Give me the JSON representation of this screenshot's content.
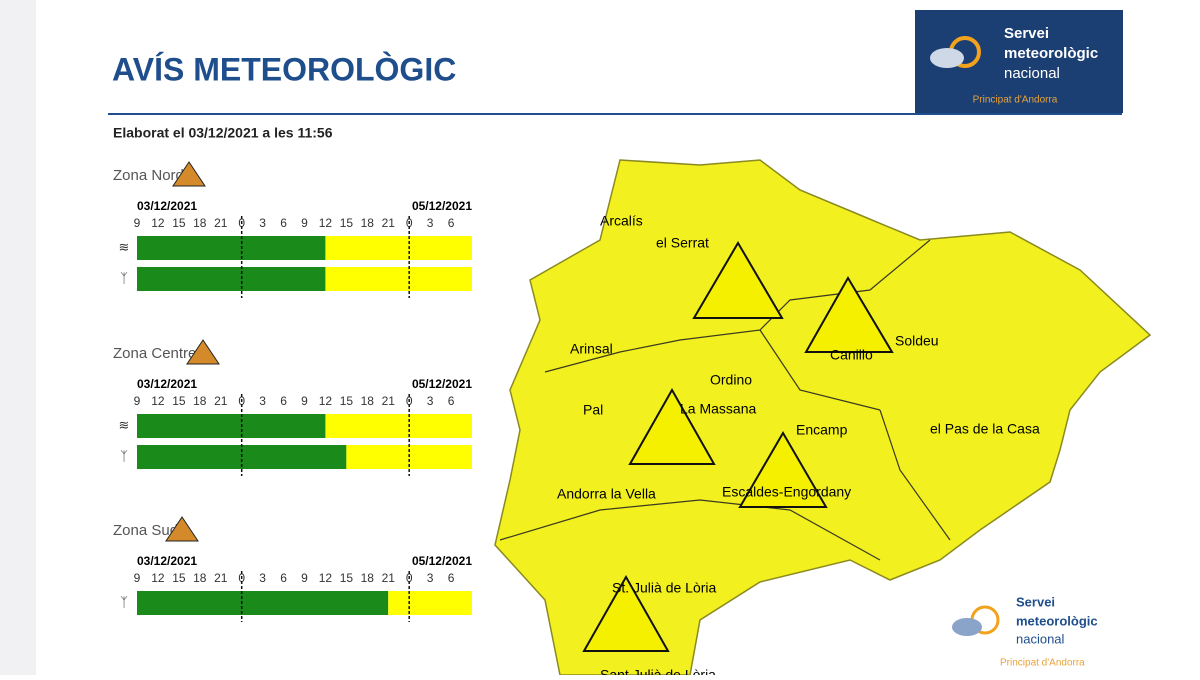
{
  "header": {
    "title": "AVÍS METEOROLÒGIC",
    "issued": "Elaborat el 03/12/2021 a les 11:56"
  },
  "logo": {
    "line1": "Servei",
    "line2": "meteorològic",
    "line3": "nacional",
    "sub": "Principat d'Andorra"
  },
  "timeline": {
    "xlim": [
      9,
      57
    ],
    "xticks": [
      9,
      12,
      15,
      18,
      21,
      {
        "value": 24,
        "label": "0"
      },
      {
        "value": 27,
        "label": "3"
      },
      {
        "value": 30,
        "label": "6"
      },
      {
        "value": 33,
        "label": "9"
      },
      {
        "value": 36,
        "label": "12"
      },
      {
        "value": 39,
        "label": "15"
      },
      {
        "value": 42,
        "label": "18"
      },
      {
        "value": 45,
        "label": "21"
      },
      {
        "value": 48,
        "label": "0"
      },
      {
        "value": 51,
        "label": "3"
      },
      {
        "value": 54,
        "label": "6"
      }
    ],
    "midnights": [
      24,
      48
    ],
    "start_date": "03/12/2021",
    "end_date": "05/12/2021",
    "colors": [
      "#1a8a1a",
      "#ffff00"
    ],
    "zones": [
      {
        "name": "Zona Nord",
        "rows": [
          {
            "icon": "wind",
            "warning_from": 36
          },
          {
            "icon": "tree",
            "warning_from": 36
          }
        ]
      },
      {
        "name": "Zona Centre",
        "rows": [
          {
            "icon": "wind",
            "warning_from": 36
          },
          {
            "icon": "tree",
            "warning_from": 39
          }
        ]
      },
      {
        "name": "Zona Sud",
        "rows": [
          {
            "icon": "tree",
            "warning_from": 45
          }
        ]
      }
    ]
  },
  "map": {
    "places": [
      "Arcalís",
      "el Serrat",
      "Arinsal",
      "Soldeu",
      "Canillo",
      "Ordino",
      "La Massana",
      "Pal",
      "Encamp",
      "el Pas de la Casa",
      "Andorra la Vella",
      "Escaldes-Engordany",
      "St. Julià de Lòria",
      "Sant Julià de Lòria"
    ]
  }
}
